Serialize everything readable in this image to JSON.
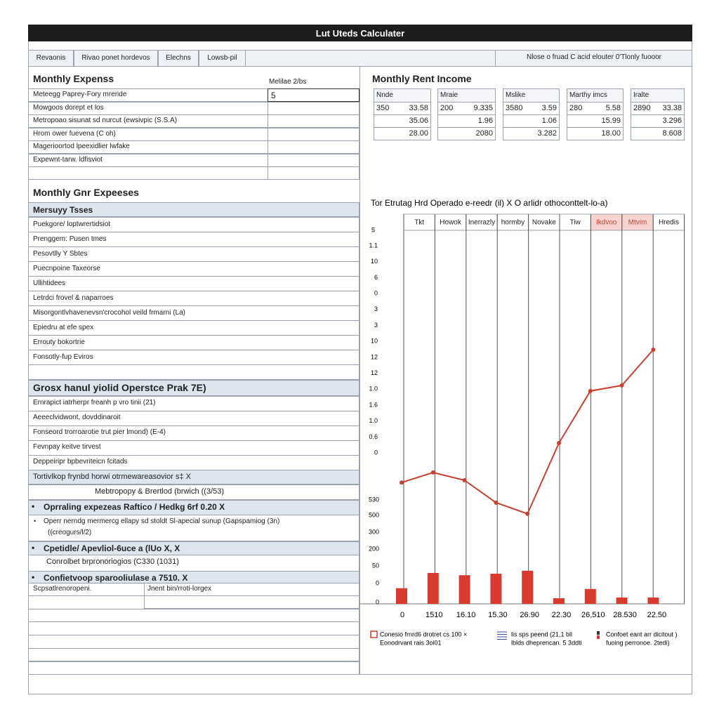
{
  "title": "Lut Uteds Calculater",
  "tabs": [
    "Revaonis",
    "Rivao ponet hordevos",
    "Elechns",
    "Lowsb-pil"
  ],
  "tab_note": "Nlose o fruad C acid elouter 0'Tlonly fuooor",
  "expenses": {
    "heading": "Monthly Expenss",
    "input_label": "Melilae 2/bs",
    "input_value": "5",
    "rows": [
      "Meteegg Paprey-Fory mreride",
      "Mowgoos dorept et los",
      "Metropoao sisunat sd nurcut (ewsivpic (S.S.A)",
      "Hrom ower fuevena (C oh)",
      "Magerioortod lpeexidlier lwfake",
      "Expewnt-tarw. ldfisviot"
    ]
  },
  "other_expenses": {
    "heading": "Monthly Gnr Expeeses",
    "header": "Mersuyy Tsses",
    "rows": [
      "Puekgore/ loptwrertidsiot",
      "Prenggem: Pusen tmes",
      "Pesovtlly Y Sbtes",
      "Puecnpoine Taxeorse",
      "Ullihtidees",
      "Letrdci frovel & naparroes",
      "Misorgontlvhavenevsn'crocohol veild frmarni (La)",
      "Epiedru at efe spex",
      "Errouty bokortrie",
      "Fonsotly-fup Eviros"
    ]
  },
  "operating": {
    "heading": "Grosx hanul yiolid Operstce Prak 7E)",
    "rows": [
      "Ernrapict iatrherpr freanh p vro tinii (21)",
      "Aeeeclvidwont, dovddinaroit",
      "Fonseord trorroarotie trut pier lmond) (E-4)",
      "Fevnpay keitve tirvest",
      "Deppeiripr bpbevriteicn fcitads"
    ],
    "summary": "Tortivlkop frynbd horwi otrmewareasovior s‡ X",
    "subtotal": "Mebtropopy & Brertlod (brwich ((3/53)",
    "ratios": [
      {
        "title": "Oprraling expezeas Raftico / Hedkg 6rf 0.20 X",
        "detail": "Operr nerndg mermercg ellapy sd stoldt Sl-apecial sunup (Gapspamiog (3n)",
        "detail2": "((creogurs/l/2)"
      },
      {
        "title": "Cpetidle/ Apevliol-6uce a (lUo  X, X",
        "detail": "Conrolbet brpronoriogios (C330 (1031)"
      },
      {
        "title": "Confietvoop sparooliulase a 7510. X",
        "detail": "Scpsatlrenoropeni.",
        "detail_right": "Jnent bin/rroti-lorgex"
      }
    ]
  },
  "rent": {
    "heading": "Monthly Rent Income",
    "tables": [
      {
        "header": "Nnde",
        "rows": [
          [
            "350",
            "33.58"
          ],
          [
            "35.06"
          ],
          [
            "28.00"
          ]
        ]
      },
      {
        "header": "Mraie",
        "rows": [
          [
            "200",
            "9.335"
          ],
          [
            "1.96"
          ],
          [
            "2080"
          ]
        ]
      },
      {
        "header": "Mslike",
        "rows": [
          [
            "3580",
            "3.59"
          ],
          [
            "1.06"
          ],
          [
            "3.282"
          ]
        ]
      },
      {
        "header": "Marthy imcs",
        "rows": [
          [
            "280",
            "5.58"
          ],
          [
            "15.99"
          ],
          [
            "18.00"
          ]
        ]
      },
      {
        "header": "Iralte",
        "rows": [
          [
            "2890",
            "33.38"
          ],
          [
            "3.296"
          ],
          [
            "8.608"
          ]
        ]
      }
    ]
  },
  "chart": {
    "title": "Tor Etrutag Hrd Operado e-reedr (il) X O arlidr othoconttelt-lo-a)",
    "corner_label": "5",
    "columns": [
      {
        "label": "Tkt"
      },
      {
        "label": "Howok"
      },
      {
        "label": "Inerrazly"
      },
      {
        "label": "hormby"
      },
      {
        "label": "Novake"
      },
      {
        "label": "Tiw"
      },
      {
        "label": "Ikdvoo",
        "highlight": true
      },
      {
        "label": "Mtvim",
        "highlight": true
      },
      {
        "label": "Hredis"
      }
    ],
    "y_labels_upper": [
      "1.1",
      "10",
      "6",
      "0",
      "3",
      "3",
      "10",
      "12",
      "12",
      "1.0",
      "1.6",
      "1.0",
      "0.6",
      "0"
    ],
    "y_labels_lower": [
      "530",
      "500",
      "300",
      "200",
      "50",
      "0",
      "0"
    ],
    "x_labels": [
      "0",
      "1510",
      "16.10",
      "15.30",
      "26.90",
      "22.30",
      "26,510",
      "28.530",
      "22.50"
    ],
    "ylim": [
      0,
      100
    ],
    "line": {
      "color": "#c9402e",
      "values": [
        32.6,
        35.3,
        33.2,
        27.2,
        24.2,
        43.2,
        57.2,
        58.7,
        68.3
      ]
    },
    "bars": {
      "color": "#d93a2f",
      "values": [
        4.2,
        8.3,
        7.7,
        8.1,
        8.9,
        1.5,
        4.0,
        1.7,
        1.7
      ]
    },
    "legend": [
      {
        "lines": [
          "Conesio frnrd6 drotret cs 100 ×",
          "Eonodrvant rais 3oi01"
        ]
      },
      {
        "lines": [
          "lis sps peend (21,1 bll",
          "lblds dheprencan. 5 3ddti"
        ]
      },
      {
        "lines": [
          "Confoet eant arr dicitout )",
          "fuoing perronoe. 2tedi)"
        ]
      }
    ]
  }
}
